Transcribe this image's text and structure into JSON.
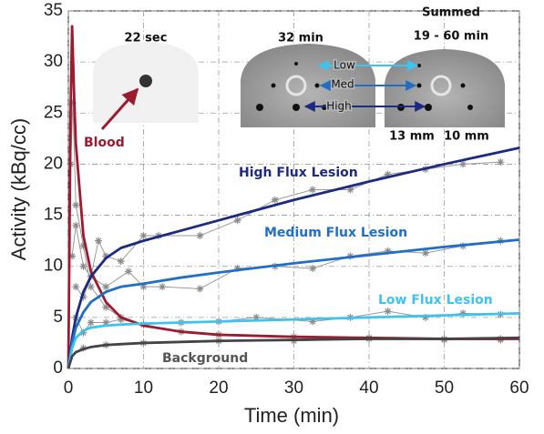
{
  "chart_data": {
    "type": "line",
    "x_label": "Time (min)",
    "y_label": "Activity (kBq/cc)",
    "xlim": [
      0,
      60
    ],
    "xticks": [
      0,
      10,
      20,
      30,
      40,
      50,
      60
    ],
    "ylim": [
      0,
      35
    ],
    "yticks": [
      0,
      5,
      10,
      15,
      20,
      25,
      30,
      35
    ],
    "grid": true,
    "series": [
      {
        "name": "Blood",
        "color": "#9b1b30",
        "x": [
          0,
          0.3,
          0.5,
          0.8,
          1,
          2,
          3,
          5,
          7,
          10,
          15,
          20,
          30,
          40,
          50,
          60
        ],
        "values": [
          0,
          25,
          33.5,
          26,
          22,
          13,
          9.5,
          6.5,
          5,
          4.2,
          3.6,
          3.3,
          3.1,
          3,
          2.9,
          2.9
        ],
        "measured_x": [
          0.3,
          0.6,
          1,
          2,
          3,
          5,
          7,
          10,
          15,
          20,
          30,
          40,
          50,
          57.5
        ],
        "measured_values": [
          20,
          26,
          16,
          12,
          8,
          6,
          5,
          4.3,
          3.6,
          3.3,
          3.1,
          3,
          2.9,
          2.9
        ]
      },
      {
        "name": "High Flux Lesion",
        "color": "#1c2a80",
        "x": [
          0,
          0.5,
          1,
          2,
          3,
          5,
          7,
          10,
          15,
          20,
          30,
          40,
          50,
          60
        ],
        "values": [
          0,
          3,
          5,
          7.5,
          9,
          10.8,
          11.8,
          12.5,
          13.5,
          14.5,
          16.5,
          18.3,
          20,
          21.6
        ],
        "measured_x": [
          0.5,
          1,
          2,
          3,
          4,
          5,
          7,
          10,
          12,
          17.5,
          22.5,
          27.5,
          32.5,
          37.5,
          42.5,
          47.5,
          52.5,
          57.5
        ],
        "measured_values": [
          11,
          14,
          10,
          9,
          12.5,
          11,
          10.5,
          13,
          13,
          13,
          14.5,
          16.5,
          17.5,
          17.5,
          19,
          19.5,
          20,
          20.2
        ]
      },
      {
        "name": "Medium Flux Lesion",
        "color": "#1f6fc5",
        "x": [
          0,
          0.5,
          1,
          2,
          3,
          5,
          7,
          10,
          15,
          20,
          30,
          40,
          50,
          60
        ],
        "values": [
          0,
          2.5,
          4,
          5.5,
          6.5,
          7.5,
          8,
          8.3,
          8.9,
          9.4,
          10.3,
          11.1,
          11.9,
          12.6
        ],
        "measured_x": [
          1,
          2,
          3,
          5,
          8,
          10,
          12.5,
          17.5,
          22.5,
          27.5,
          32.5,
          37.5,
          42.5,
          47.5,
          52.5,
          57.5
        ],
        "measured_values": [
          8,
          7,
          9,
          8,
          9.5,
          8,
          8,
          7.8,
          9.8,
          10,
          9.8,
          11,
          11.5,
          11.3,
          12,
          12.5
        ]
      },
      {
        "name": "Low Flux Lesion",
        "color": "#3ec3ef",
        "x": [
          0,
          0.5,
          1,
          2,
          3,
          5,
          7,
          10,
          20,
          30,
          40,
          50,
          60
        ],
        "values": [
          0,
          2,
          3,
          3.7,
          4,
          4.2,
          4.3,
          4.4,
          4.6,
          4.8,
          5,
          5.2,
          5.4
        ],
        "measured_x": [
          1,
          2,
          3,
          5,
          7,
          10,
          15,
          20,
          25,
          32.5,
          37.5,
          42.5,
          47.5,
          52.5,
          57.5
        ],
        "measured_values": [
          5,
          3.5,
          4.5,
          4.5,
          4.8,
          4.3,
          4.5,
          4.6,
          5,
          4.6,
          5,
          5.6,
          5,
          5.4,
          5.3
        ]
      },
      {
        "name": "Background",
        "color": "#444444",
        "x": [
          0,
          0.5,
          1,
          2,
          3,
          5,
          10,
          20,
          30,
          40,
          50,
          60
        ],
        "values": [
          0,
          1.2,
          1.6,
          1.9,
          2.1,
          2.3,
          2.5,
          2.7,
          2.8,
          2.9,
          2.9,
          3
        ],
        "measured_x": [
          2,
          5,
          10,
          20,
          30,
          40,
          50,
          57.5
        ],
        "measured_values": [
          2,
          2.3,
          2.5,
          2.7,
          2.7,
          2.9,
          2.8,
          2.8
        ]
      }
    ],
    "annotations": [
      {
        "text": "22 sec"
      },
      {
        "text": "32 min"
      },
      {
        "text": "Summed"
      },
      {
        "text": "19 - 60 min"
      },
      {
        "text": "Low"
      },
      {
        "text": "Med"
      },
      {
        "text": "High"
      },
      {
        "text": "13 mm"
      },
      {
        "text": "10 mm"
      }
    ]
  }
}
